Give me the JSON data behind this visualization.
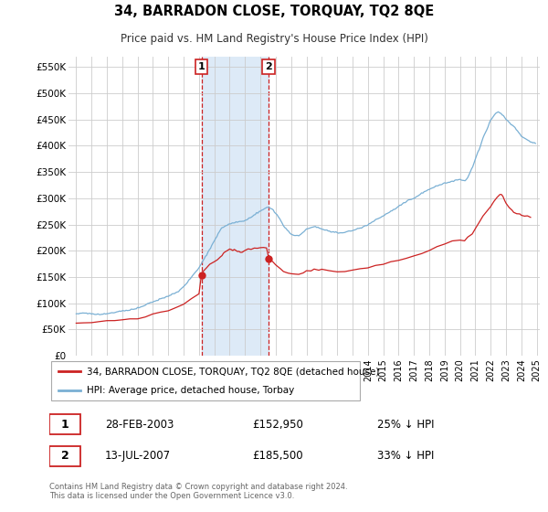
{
  "title": "34, BARRADON CLOSE, TORQUAY, TQ2 8QE",
  "subtitle": "Price paid vs. HM Land Registry's House Price Index (HPI)",
  "hpi_color": "#7ab0d4",
  "price_color": "#cc2222",
  "grid_color": "#cccccc",
  "highlight_bg": "#ddeaf7",
  "ylim": [
    0,
    570000
  ],
  "yticks": [
    0,
    50000,
    100000,
    150000,
    200000,
    250000,
    300000,
    350000,
    400000,
    450000,
    500000,
    550000
  ],
  "ytick_labels": [
    "£0",
    "£50K",
    "£100K",
    "£150K",
    "£200K",
    "£250K",
    "£300K",
    "£350K",
    "£400K",
    "£450K",
    "£500K",
    "£550K"
  ],
  "transaction1": {
    "date": "28-FEB-2003",
    "price": 152950,
    "pct": "25%",
    "label": "1"
  },
  "transaction2": {
    "date": "13-JUL-2007",
    "price": 185500,
    "pct": "33%",
    "label": "2"
  },
  "legend_line1": "34, BARRADON CLOSE, TORQUAY, TQ2 8QE (detached house)",
  "legend_line2": "HPI: Average price, detached house, Torbay",
  "footer": "Contains HM Land Registry data © Crown copyright and database right 2024.\nThis data is licensed under the Open Government Licence v3.0.",
  "transaction1_x": 2003.163,
  "transaction1_y": 152950,
  "transaction2_x": 2007.537,
  "transaction2_y": 185500,
  "xmin": 1994.5,
  "xmax": 2025.2,
  "xtick_start": 1995,
  "xtick_end": 2025
}
